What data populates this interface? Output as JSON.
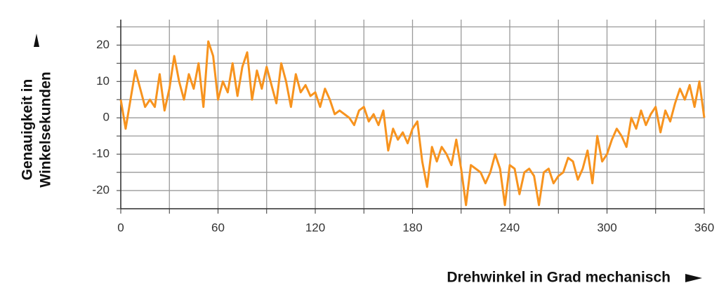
{
  "chart_data": {
    "type": "line",
    "y_label": [
      "Genauigkeit in",
      "Winkelsekunden"
    ],
    "x_label": "Drehwinkel in Grad mechanisch",
    "xlim": [
      0,
      360
    ],
    "xticks": [
      0,
      60,
      120,
      180,
      240,
      300,
      360
    ],
    "xminorticks": [
      30,
      90,
      150,
      210,
      270,
      330
    ],
    "ylim": [
      -25,
      27
    ],
    "yticks": [
      -20,
      -10,
      0,
      10,
      20
    ],
    "yminorticks": [
      -25,
      -15,
      -5,
      5,
      15,
      25
    ],
    "grid": true,
    "series": [
      {
        "color": "#f7931e",
        "x": [
          0,
          3,
          6,
          9,
          12,
          15,
          18,
          21,
          24,
          27,
          30,
          33,
          36,
          39,
          42,
          45,
          48,
          51,
          54,
          57,
          60,
          63,
          66,
          69,
          72,
          75,
          78,
          81,
          84,
          87,
          90,
          93,
          96,
          99,
          102,
          105,
          108,
          111,
          114,
          117,
          120,
          123,
          126,
          129,
          132,
          135,
          138,
          141,
          144,
          147,
          150,
          153,
          156,
          159,
          162,
          165,
          168,
          171,
          174,
          177,
          180,
          183,
          186,
          189,
          192,
          195,
          198,
          201,
          204,
          207,
          210,
          213,
          216,
          219,
          222,
          225,
          228,
          231,
          234,
          237,
          240,
          243,
          246,
          249,
          252,
          255,
          258,
          261,
          264,
          267,
          270,
          273,
          276,
          279,
          282,
          285,
          288,
          291,
          294,
          297,
          300,
          303,
          306,
          309,
          312,
          315,
          318,
          321,
          324,
          327,
          330,
          333,
          336,
          339,
          342,
          345,
          348,
          351,
          354,
          357,
          360
        ],
        "values": [
          5,
          -3,
          5,
          13,
          8,
          3,
          5,
          3,
          12,
          2,
          8,
          17,
          10,
          5,
          12,
          8,
          15,
          3,
          21,
          17,
          5,
          10,
          7,
          15,
          6,
          14,
          18,
          5,
          13,
          8,
          14,
          9,
          4,
          15,
          10,
          3,
          12,
          7,
          9,
          6,
          7,
          3,
          8,
          5,
          1,
          2,
          1,
          0,
          -2,
          2,
          3,
          -1,
          1,
          -2,
          2,
          -9,
          -3,
          -6,
          -4,
          -7,
          -3,
          -1,
          -12,
          -19,
          -8,
          -12,
          -8,
          -10,
          -13,
          -6,
          -14,
          -24,
          -13,
          -14,
          -15,
          -18,
          -15,
          -10,
          -14,
          -24,
          -13,
          -14,
          -21,
          -15,
          -14,
          -16,
          -24,
          -15,
          -14,
          -18,
          -16,
          -15,
          -11,
          -12,
          -17,
          -14,
          -9,
          -18,
          -5,
          -12,
          -10,
          -6,
          -3,
          -5,
          -8,
          0,
          -3,
          2,
          -2,
          1,
          3,
          -4,
          2,
          -1,
          4,
          8,
          5,
          9,
          3,
          10,
          0
        ]
      }
    ]
  }
}
